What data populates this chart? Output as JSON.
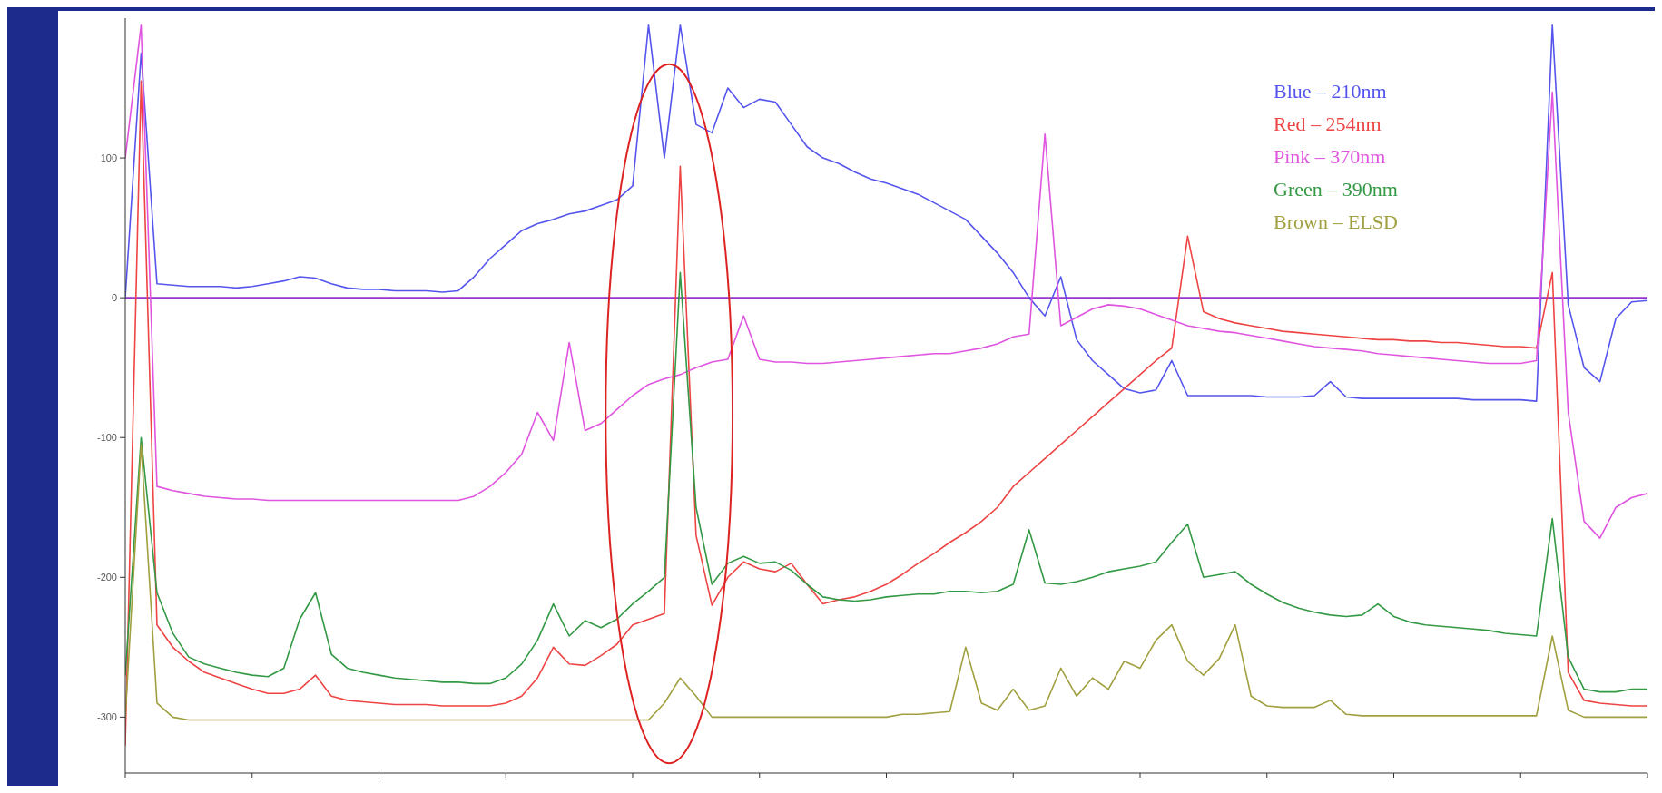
{
  "chart_data": {
    "type": "line",
    "categories": [
      null,
      null,
      null,
      null,
      null,
      null,
      null,
      null,
      null,
      null,
      null,
      null,
      null,
      null,
      null,
      null,
      null,
      null,
      null,
      null,
      null,
      null,
      null,
      null,
      null,
      null,
      null,
      null,
      null,
      null,
      null,
      null,
      null,
      null,
      null,
      null,
      null,
      null,
      null,
      null,
      null,
      null,
      null,
      null,
      null,
      null,
      null,
      null,
      null,
      null,
      null,
      null,
      null,
      null,
      null,
      null,
      null,
      null,
      null,
      null,
      null,
      null,
      null,
      null,
      null,
      null,
      null,
      null,
      null,
      null,
      null,
      null,
      null,
      null,
      null,
      null,
      null,
      null,
      null,
      null,
      null,
      null,
      null,
      null,
      null,
      null,
      null,
      null,
      null,
      null,
      null,
      null,
      null,
      null,
      null,
      null,
      null
    ],
    "series": [
      {
        "name": "Blue – 210nm",
        "color": "#5555ee",
        "values": [
          0,
          175,
          10,
          9,
          8,
          8,
          8,
          7,
          8,
          10,
          12,
          15,
          14,
          10,
          7,
          6,
          6,
          5,
          5,
          5,
          4,
          5,
          15,
          28,
          38,
          48,
          53,
          56,
          60,
          62,
          66,
          70,
          80,
          195,
          100,
          195,
          124,
          118,
          150,
          136,
          142,
          140,
          124,
          108,
          100,
          96,
          90,
          85,
          82,
          78,
          74,
          68,
          62,
          56,
          44,
          32,
          18,
          0,
          -13,
          15,
          -30,
          -45,
          -55,
          -65,
          -68,
          -66,
          -45,
          -70,
          -70,
          -70,
          -70,
          -70,
          -71,
          -71,
          -71,
          -70,
          -60,
          -71,
          -72,
          -72,
          -72,
          -72,
          -72,
          -72,
          -72,
          -73,
          -73,
          -73,
          -73,
          -74,
          195,
          -5,
          -50,
          -60,
          -15,
          -3,
          -2
        ]
      },
      {
        "name": "Red – 254nm",
        "color": "#ee4444",
        "values": [
          -320,
          155,
          -234,
          -250,
          -260,
          -268,
          -272,
          -276,
          -280,
          -283,
          -283,
          -280,
          -270,
          -285,
          -288,
          -289,
          -290,
          -291,
          -291,
          -291,
          -292,
          -292,
          -292,
          -292,
          -290,
          -285,
          -272,
          -250,
          -262,
          -263,
          -256,
          -248,
          -234,
          -230,
          -226,
          94,
          -170,
          -220,
          -200,
          -189,
          -194,
          -196,
          -190,
          -205,
          -219,
          -216,
          -214,
          -210,
          -205,
          -198,
          -190,
          -183,
          -175,
          -168,
          -160,
          -150,
          -135,
          -125,
          -115,
          -105,
          -95,
          -85,
          -75,
          -65,
          -55,
          -45,
          -36,
          44,
          -10,
          -15,
          -18,
          -20,
          -22,
          -24,
          -25,
          -26,
          -27,
          -28,
          -29,
          -30,
          -30,
          -31,
          -31,
          -32,
          -32,
          -33,
          -34,
          -35,
          -35,
          -36,
          18,
          -268,
          -288,
          -290,
          -291,
          -292,
          -292
        ]
      },
      {
        "name": "Pink – 370nm",
        "color": "#e055e0",
        "values": [
          100,
          195,
          -135,
          -138,
          -140,
          -142,
          -143,
          -144,
          -144,
          -145,
          -145,
          -145,
          -145,
          -145,
          -145,
          -145,
          -145,
          -145,
          -145,
          -145,
          -145,
          -145,
          -142,
          -135,
          -125,
          -112,
          -82,
          -102,
          -32,
          -95,
          -90,
          -80,
          -70,
          -62,
          -58,
          -55,
          -50,
          -46,
          -44,
          -13,
          -44,
          -46,
          -46,
          -47,
          -47,
          -46,
          -45,
          -44,
          -43,
          -42,
          -41,
          -40,
          -40,
          -38,
          -36,
          -33,
          -28,
          -26,
          117,
          -20,
          -14,
          -8,
          -5,
          -6,
          -8,
          -12,
          -16,
          -20,
          -22,
          -24,
          -25,
          -27,
          -29,
          -31,
          -33,
          -35,
          -36,
          -37,
          -38,
          -40,
          -41,
          -42,
          -43,
          -44,
          -45,
          -46,
          -47,
          -47,
          -47,
          -45,
          147,
          -82,
          -160,
          -172,
          -150,
          -143,
          -140
        ]
      },
      {
        "name": "Green – 390nm",
        "color": "#339944",
        "values": [
          -270,
          -100,
          -211,
          -240,
          -257,
          -262,
          -265,
          -268,
          -270,
          -271,
          -265,
          -230,
          -211,
          -255,
          -265,
          -268,
          -270,
          -272,
          -273,
          -274,
          -275,
          -275,
          -276,
          -276,
          -272,
          -262,
          -245,
          -219,
          -242,
          -231,
          -236,
          -230,
          -219,
          -210,
          -200,
          18,
          -150,
          -205,
          -190,
          -185,
          -190,
          -189,
          -195,
          -205,
          -214,
          -216,
          -217,
          -216,
          -214,
          -213,
          -212,
          -212,
          -210,
          -210,
          -211,
          -210,
          -205,
          -166,
          -204,
          -205,
          -203,
          -200,
          -196,
          -194,
          -192,
          -189,
          -175,
          -162,
          -200,
          -198,
          -196,
          -205,
          -212,
          -218,
          -222,
          -225,
          -227,
          -228,
          -227,
          -219,
          -228,
          -232,
          -234,
          -235,
          -236,
          -237,
          -238,
          -240,
          -241,
          -242,
          -158,
          -257,
          -280,
          -282,
          -282,
          -280,
          -280
        ]
      },
      {
        "name": "Brown – ELSD",
        "color": "#a0a040",
        "values": [
          -300,
          -105,
          -290,
          -300,
          -302,
          -302,
          -302,
          -302,
          -302,
          -302,
          -302,
          -302,
          -302,
          -302,
          -302,
          -302,
          -302,
          -302,
          -302,
          -302,
          -302,
          -302,
          -302,
          -302,
          -302,
          -302,
          -302,
          -302,
          -302,
          -302,
          -302,
          -302,
          -302,
          -302,
          -290,
          -272,
          -285,
          -300,
          -300,
          -300,
          -300,
          -300,
          -300,
          -300,
          -300,
          -300,
          -300,
          -300,
          -300,
          -298,
          -298,
          -297,
          -296,
          -250,
          -290,
          -295,
          -280,
          -295,
          -292,
          -265,
          -285,
          -272,
          -280,
          -260,
          -265,
          -245,
          -234,
          -260,
          -270,
          -258,
          -234,
          -285,
          -292,
          -293,
          -293,
          -293,
          -288,
          -298,
          -299,
          -299,
          -299,
          -299,
          -299,
          -299,
          -299,
          -299,
          -299,
          -299,
          -299,
          -299,
          -242,
          -295,
          -300,
          -300,
          -300,
          -300,
          -300
        ]
      }
    ],
    "ylim": [
      -340,
      200
    ],
    "yticks": [
      -300,
      -200,
      -100,
      0,
      100
    ],
    "tick_labels": "y",
    "grid": false,
    "legend": "top right",
    "ref_lines": [
      {
        "axis": "y",
        "value": 0,
        "color": "#9933cc"
      }
    ]
  }
}
